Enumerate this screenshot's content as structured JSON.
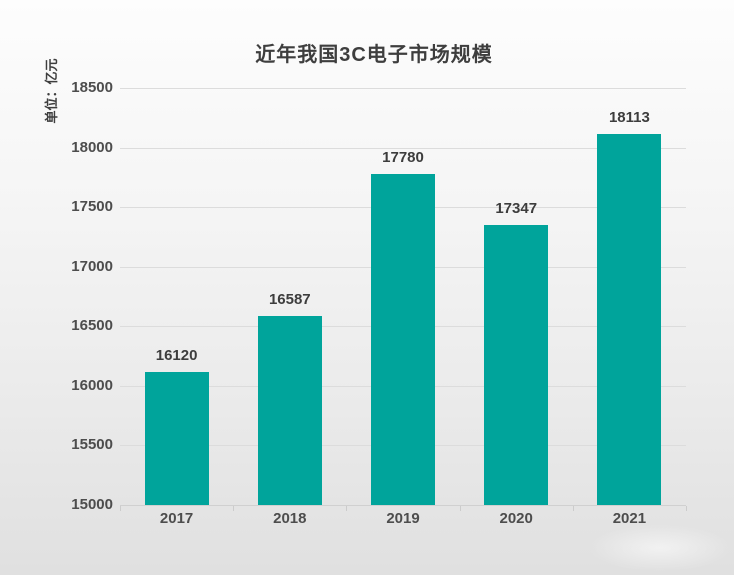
{
  "chart_data": {
    "type": "bar",
    "title": "近年我国3C电子市场规模",
    "ylabel": "单位：亿元",
    "xlabel": "",
    "categories": [
      "2017",
      "2018",
      "2019",
      "2020",
      "2021"
    ],
    "values": [
      16120,
      16587,
      17780,
      17347,
      18113
    ],
    "ylim": [
      15000,
      18500
    ],
    "yticks": [
      15000,
      15500,
      16000,
      16500,
      17000,
      17500,
      18000,
      18500
    ],
    "grid": true,
    "legend": "none",
    "colors": {
      "bar": "#00a49b",
      "title_text": "#3e3e3e",
      "value_label_text": "#3d3d3d",
      "axis_label_text": "#4d4d4d",
      "gridline": "#dcdcdc",
      "background_top": "#fdfdfd",
      "background_bottom": "#e0e0e0"
    }
  }
}
